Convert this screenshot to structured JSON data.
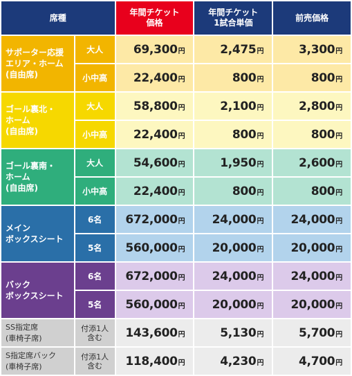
{
  "header": {
    "seat": "席種",
    "annual_price": [
      "年間チケット",
      "価格"
    ],
    "per_game": [
      "年間チケット",
      "1試合単価"
    ],
    "advance": "前売価格"
  },
  "yen": "円",
  "colors": {
    "header_dark": "#1c3a7a",
    "header_red": "#e8001c",
    "supporter_dark": "#f2b500",
    "supporter_light": "#fde9a6",
    "goal_north_dark": "#f6d800",
    "goal_north_light": "#fdf7c0",
    "goal_south_dark": "#2fae7c",
    "goal_south_light": "#b3e3d2",
    "main_box_dark": "#2a6fa8",
    "main_box_light": "#b2d3ec",
    "back_box_dark": "#6b3f8e",
    "back_box_light": "#dccaea",
    "wheelchair_dark": "#d0d0d0",
    "wheelchair_light": "#ececec"
  },
  "rows": [
    {
      "category": [
        "サポーター応援",
        "エリア・ホーム",
        "(自由席)"
      ],
      "sub": "大人",
      "annual": "69,300",
      "per_game": "2,475",
      "advance": "3,300"
    },
    {
      "sub": "小中高",
      "annual": "22,400",
      "per_game": "800",
      "advance": "800"
    },
    {
      "category": [
        "ゴール裏北・",
        "ホーム",
        "(自由席)"
      ],
      "sub": "大人",
      "annual": "58,800",
      "per_game": "2,100",
      "advance": "2,800"
    },
    {
      "sub": "小中高",
      "annual": "22,400",
      "per_game": "800",
      "advance": "800"
    },
    {
      "category": [
        "ゴール裏南・",
        "ホーム",
        "(自由席)"
      ],
      "sub": "大人",
      "annual": "54,600",
      "per_game": "1,950",
      "advance": "2,600"
    },
    {
      "sub": "小中高",
      "annual": "22,400",
      "per_game": "800",
      "advance": "800"
    },
    {
      "category": [
        "メイン",
        "ボックスシート"
      ],
      "sub": "6名",
      "annual": "672,000",
      "per_game": "24,000",
      "advance": "24,000"
    },
    {
      "sub": "5名",
      "annual": "560,000",
      "per_game": "20,000",
      "advance": "20,000"
    },
    {
      "category": [
        "バック",
        "ボックスシート"
      ],
      "sub": "6名",
      "annual": "672,000",
      "per_game": "24,000",
      "advance": "24,000"
    },
    {
      "sub": "5名",
      "annual": "560,000",
      "per_game": "20,000",
      "advance": "20,000"
    },
    {
      "category": [
        "SS指定席",
        "(車椅子席)"
      ],
      "sub": [
        "付添1人",
        "含む"
      ],
      "annual": "143,600",
      "per_game": "5,130",
      "advance": "5,700"
    },
    {
      "category": [
        "S指定席バック",
        "(車椅子席)"
      ],
      "sub": [
        "付添1人",
        "含む"
      ],
      "annual": "118,400",
      "per_game": "4,230",
      "advance": "4,700"
    }
  ]
}
